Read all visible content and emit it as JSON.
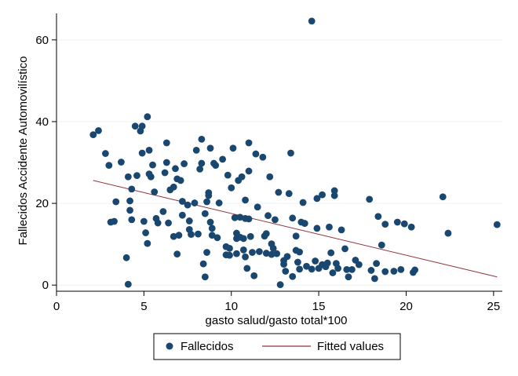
{
  "chart_data": {
    "type": "scatter",
    "title": "",
    "xlabel": "gasto salud/gasto total*100",
    "ylabel": "Fallecidos Accidente Automovilístico",
    "xlim": [
      0,
      25.5
    ],
    "ylim": [
      -1.5,
      66.5
    ],
    "xticks": [
      "0",
      "5",
      "10",
      "15",
      "20",
      "25"
    ],
    "yticks": [
      "0",
      "20",
      "40",
      "60"
    ],
    "legend_position": "bottom",
    "series": [
      {
        "name": "Fallecidos",
        "kind": "scatter",
        "color": "#1a476f",
        "points": [
          [
            2.1,
            36.8
          ],
          [
            2.4,
            37.8
          ],
          [
            2.8,
            32.2
          ],
          [
            3.0,
            29.3
          ],
          [
            3.1,
            15.4
          ],
          [
            3.3,
            15.6
          ],
          [
            3.4,
            20.4
          ],
          [
            3.7,
            30.1
          ],
          [
            4.0,
            6.7
          ],
          [
            4.1,
            0.2
          ],
          [
            4.1,
            26.5
          ],
          [
            4.2,
            20.6
          ],
          [
            4.2,
            18.3
          ],
          [
            4.3,
            16.0
          ],
          [
            4.3,
            23.5
          ],
          [
            4.5,
            38.9
          ],
          [
            4.6,
            26.8
          ],
          [
            4.8,
            37.7
          ],
          [
            4.9,
            38.9
          ],
          [
            4.9,
            32.3
          ],
          [
            5.0,
            15.6
          ],
          [
            5.1,
            12.8
          ],
          [
            5.2,
            10.2
          ],
          [
            5.2,
            41.2
          ],
          [
            5.3,
            33.0
          ],
          [
            5.3,
            27.2
          ],
          [
            5.4,
            26.5
          ],
          [
            5.5,
            29.4
          ],
          [
            5.6,
            22.8
          ],
          [
            5.7,
            16.3
          ],
          [
            5.8,
            15.2
          ],
          [
            6.1,
            18.0
          ],
          [
            6.2,
            27.5
          ],
          [
            6.3,
            34.8
          ],
          [
            6.3,
            30.0
          ],
          [
            6.4,
            15.2
          ],
          [
            6.5,
            23.3
          ],
          [
            6.7,
            11.9
          ],
          [
            6.7,
            24.0
          ],
          [
            6.8,
            28.5
          ],
          [
            6.9,
            7.6
          ],
          [
            6.9,
            26.0
          ],
          [
            7.0,
            12.2
          ],
          [
            7.1,
            25.6
          ],
          [
            7.2,
            20.5
          ],
          [
            7.2,
            17.1
          ],
          [
            7.3,
            29.7
          ],
          [
            7.5,
            19.6
          ],
          [
            7.6,
            15.7
          ],
          [
            7.6,
            13.6
          ],
          [
            7.7,
            12.4
          ],
          [
            7.9,
            20.1
          ],
          [
            8.0,
            33.0
          ],
          [
            8.1,
            12.5
          ],
          [
            8.2,
            28.4
          ],
          [
            8.3,
            29.8
          ],
          [
            8.3,
            35.7
          ],
          [
            8.4,
            5.2
          ],
          [
            8.5,
            2.0
          ],
          [
            8.5,
            17.5
          ],
          [
            8.6,
            8.0
          ],
          [
            8.6,
            20.4
          ],
          [
            8.7,
            21.9
          ],
          [
            8.7,
            22.6
          ],
          [
            8.8,
            33.5
          ],
          [
            8.8,
            15.4
          ],
          [
            8.9,
            12.2
          ],
          [
            8.9,
            13.9
          ],
          [
            9.0,
            29.8
          ],
          [
            9.1,
            29.3
          ],
          [
            9.2,
            11.6
          ],
          [
            9.3,
            20.1
          ],
          [
            9.5,
            30.8
          ],
          [
            9.7,
            7.4
          ],
          [
            9.7,
            9.4
          ],
          [
            9.8,
            26.9
          ],
          [
            9.9,
            9.0
          ],
          [
            9.9,
            7.3
          ],
          [
            10.0,
            23.8
          ],
          [
            10.1,
            33.5
          ],
          [
            10.2,
            16.5
          ],
          [
            10.3,
            11.4
          ],
          [
            10.3,
            12.7
          ],
          [
            10.3,
            7.7
          ],
          [
            10.4,
            25.6
          ],
          [
            10.5,
            16.6
          ],
          [
            10.5,
            11.7
          ],
          [
            10.6,
            26.5
          ],
          [
            10.7,
            8.6
          ],
          [
            10.7,
            11.4
          ],
          [
            10.8,
            20.8
          ],
          [
            10.8,
            16.3
          ],
          [
            10.8,
            6.9
          ],
          [
            10.9,
            4.1
          ],
          [
            11.0,
            34.8
          ],
          [
            11.0,
            27.9
          ],
          [
            11.0,
            16.2
          ],
          [
            11.1,
            11.9
          ],
          [
            11.2,
            8.0
          ],
          [
            11.3,
            2.3
          ],
          [
            11.4,
            32.1
          ],
          [
            11.5,
            19.1
          ],
          [
            11.6,
            8.2
          ],
          [
            11.8,
            31.3
          ],
          [
            11.9,
            12.0
          ],
          [
            12.0,
            12.6
          ],
          [
            12.0,
            7.8
          ],
          [
            12.1,
            17.0
          ],
          [
            12.2,
            26.5
          ],
          [
            12.3,
            10.1
          ],
          [
            12.3,
            7.5
          ],
          [
            12.4,
            9.0
          ],
          [
            12.5,
            16.0
          ],
          [
            12.6,
            7.7
          ],
          [
            12.7,
            22.7
          ],
          [
            12.8,
            0.1
          ],
          [
            13.0,
            5.1
          ],
          [
            13.0,
            6.0
          ],
          [
            13.1,
            3.4
          ],
          [
            13.2,
            7.0
          ],
          [
            13.3,
            22.4
          ],
          [
            13.4,
            32.3
          ],
          [
            13.5,
            16.4
          ],
          [
            13.5,
            2.1
          ],
          [
            13.7,
            12.0
          ],
          [
            13.7,
            8.5
          ],
          [
            13.8,
            5.6
          ],
          [
            13.9,
            3.9
          ],
          [
            13.9,
            8.1
          ],
          [
            14.0,
            15.4
          ],
          [
            14.1,
            20.2
          ],
          [
            14.2,
            15.1
          ],
          [
            14.3,
            4.6
          ],
          [
            14.6,
            3.9
          ],
          [
            14.6,
            64.6
          ],
          [
            14.8,
            5.9
          ],
          [
            14.9,
            21.2
          ],
          [
            14.9,
            13.9
          ],
          [
            15.0,
            4.1
          ],
          [
            15.2,
            5.0
          ],
          [
            15.2,
            22.1
          ],
          [
            15.4,
            4.5
          ],
          [
            15.5,
            5.4
          ],
          [
            15.6,
            14.2
          ],
          [
            15.7,
            7.9
          ],
          [
            15.8,
            3.0
          ],
          [
            15.9,
            23.1
          ],
          [
            15.9,
            21.9
          ],
          [
            16.0,
            5.3
          ],
          [
            16.1,
            4.1
          ],
          [
            16.3,
            13.5
          ],
          [
            16.5,
            8.9
          ],
          [
            16.6,
            3.8
          ],
          [
            16.7,
            2.0
          ],
          [
            16.9,
            3.8
          ],
          [
            17.1,
            6.1
          ],
          [
            17.3,
            5.0
          ],
          [
            17.9,
            21.0
          ],
          [
            18.0,
            3.6
          ],
          [
            18.2,
            1.6
          ],
          [
            18.3,
            5.3
          ],
          [
            18.4,
            16.8
          ],
          [
            18.6,
            9.8
          ],
          [
            18.8,
            14.9
          ],
          [
            18.8,
            3.3
          ],
          [
            19.3,
            3.4
          ],
          [
            19.5,
            15.4
          ],
          [
            19.7,
            3.8
          ],
          [
            19.9,
            15.0
          ],
          [
            20.3,
            14.2
          ],
          [
            20.4,
            3.1
          ],
          [
            20.5,
            3.7
          ],
          [
            22.1,
            21.6
          ],
          [
            22.4,
            12.7
          ],
          [
            25.2,
            14.8
          ]
        ]
      },
      {
        "name": "Fitted values",
        "kind": "line",
        "color": "#90353b",
        "points": [
          [
            2.1,
            25.6
          ],
          [
            25.2,
            2.0
          ]
        ]
      }
    ]
  }
}
